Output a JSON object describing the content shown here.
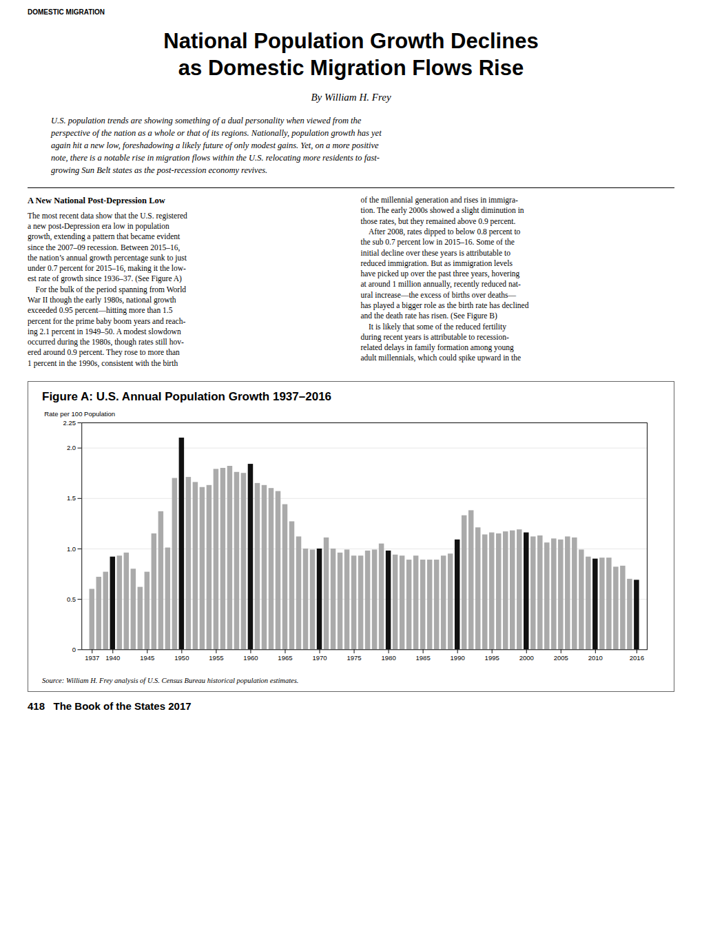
{
  "chart_data": {
    "type": "bar",
    "title": "Figure A: U.S. Annual Population Growth 1937–2016",
    "ylabel": "Rate per 100 Population",
    "caption": "Source: William H. Frey analysis of U.S. Census Bureau historical population estimates.",
    "annotations": [
      "DOMESTIC MIGRATION",
      "National Population Growth Declines",
      "as Domestic Migration Flows Rise",
      "By William H. Frey",
      "U.S. population trends are showing something of a dual personality when viewed from the\nperspective of the nation as a whole or that of its regions. Nationally, population growth has yet\nagain hit a new low, foreshadowing a likely future of only modest gains. Yet, on a more positive\nnote, there is a notable rise in migration flows within the U.S. relocating more residents to fast-\ngrowing Sun Belt states as the post-recession economy revives.",
      "A New National Post-Depression Low",
      "The most recent data show that the U.S. registered\na new post-Depression era low in population\ngrowth, extending a pattern that became evident\nsince the 2007–09 recession. Between 2015–16,\nthe nation’s annual growth percentage sunk to just\nunder 0.7 percent for 2015–16, making it the low-\nest rate of growth since 1936–37. (See Figure A)\n    For the bulk of the period spanning from World\nWar II though the early 1980s, national growth\nexceeded 0.95 percent—hitting more than 1.5\npercent for the prime baby boom years and reach-\ning 2.1 percent in 1949–50. A modest slowdown\noccurred during the 1980s, though rates still hov-\nered around 0.9 percent. They rose to more than\n1 percent in the 1990s, consistent with the birth",
      "of the millennial generation and rises in immigra-\ntion. The early 2000s showed a slight diminution in\nthose rates, but they remained above 0.9 percent.\n    After 2008, rates dipped to below 0.8 percent to\nthe sub 0.7 percent low in 2015–16. Some of the\ninitial decline over these years is attributable to\nreduced immigration. But as immigration levels\nhave picked up over the past three years, hovering\nat around 1 million annually, recently reduced nat-\nural increase—the excess of births over deaths—\nhas played a bigger role as the birth rate has declined\nand the death rate has risen. (See Figure B)\n    It is likely that some of the reduced fertility\nduring recent years is attributable to recession-\nrelated delays in family formation among young\nadult millennials, which could spike upward in the",
      "418   The Book of the States 2017"
    ],
    "x": [
      1937,
      1938,
      1939,
      1940,
      1941,
      1942,
      1943,
      1944,
      1945,
      1946,
      1947,
      1948,
      1949,
      1950,
      1951,
      1952,
      1953,
      1954,
      1955,
      1956,
      1957,
      1958,
      1959,
      1960,
      1961,
      1962,
      1963,
      1964,
      1965,
      1966,
      1967,
      1968,
      1969,
      1970,
      1971,
      1972,
      1973,
      1974,
      1975,
      1976,
      1977,
      1978,
      1979,
      1980,
      1981,
      1982,
      1983,
      1984,
      1985,
      1986,
      1987,
      1988,
      1989,
      1990,
      1991,
      1992,
      1993,
      1994,
      1995,
      1996,
      1997,
      1998,
      1999,
      2000,
      2001,
      2002,
      2003,
      2004,
      2005,
      2006,
      2007,
      2008,
      2009,
      2010,
      2011,
      2012,
      2013,
      2014,
      2015,
      2016
    ],
    "values": [
      0.6,
      0.72,
      0.77,
      0.92,
      0.93,
      0.96,
      0.8,
      0.62,
      0.77,
      1.15,
      1.37,
      1.01,
      1.7,
      2.1,
      1.71,
      1.66,
      1.61,
      1.63,
      1.79,
      1.8,
      1.82,
      1.76,
      1.75,
      1.84,
      1.65,
      1.63,
      1.6,
      1.57,
      1.44,
      1.27,
      1.12,
      1.0,
      0.99,
      1.0,
      1.11,
      1.0,
      0.96,
      0.99,
      0.93,
      0.93,
      0.98,
      0.99,
      1.05,
      0.98,
      0.94,
      0.93,
      0.89,
      0.93,
      0.89,
      0.89,
      0.89,
      0.93,
      0.95,
      1.09,
      1.33,
      1.38,
      1.21,
      1.14,
      1.16,
      1.15,
      1.17,
      1.18,
      1.19,
      1.16,
      1.12,
      1.13,
      1.06,
      1.1,
      1.09,
      1.12,
      1.11,
      0.99,
      0.92,
      0.9,
      0.91,
      0.91,
      0.82,
      0.83,
      0.7,
      0.69
    ],
    "colors": [
      "#aaaaaa",
      "#aaaaaa",
      "#aaaaaa",
      "#111111",
      "#aaaaaa",
      "#aaaaaa",
      "#aaaaaa",
      "#aaaaaa",
      "#aaaaaa",
      "#aaaaaa",
      "#aaaaaa",
      "#aaaaaa",
      "#aaaaaa",
      "#111111",
      "#aaaaaa",
      "#aaaaaa",
      "#aaaaaa",
      "#aaaaaa",
      "#aaaaaa",
      "#aaaaaa",
      "#aaaaaa",
      "#aaaaaa",
      "#aaaaaa",
      "#111111",
      "#aaaaaa",
      "#aaaaaa",
      "#aaaaaa",
      "#aaaaaa",
      "#aaaaaa",
      "#aaaaaa",
      "#aaaaaa",
      "#aaaaaa",
      "#aaaaaa",
      "#111111",
      "#aaaaaa",
      "#aaaaaa",
      "#aaaaaa",
      "#aaaaaa",
      "#aaaaaa",
      "#aaaaaa",
      "#aaaaaa",
      "#aaaaaa",
      "#aaaaaa",
      "#111111",
      "#aaaaaa",
      "#aaaaaa",
      "#aaaaaa",
      "#aaaaaa",
      "#aaaaaa",
      "#aaaaaa",
      "#aaaaaa",
      "#aaaaaa",
      "#aaaaaa",
      "#111111",
      "#aaaaaa",
      "#aaaaaa",
      "#aaaaaa",
      "#aaaaaa",
      "#aaaaaa",
      "#aaaaaa",
      "#aaaaaa",
      "#aaaaaa",
      "#aaaaaa",
      "#111111",
      "#aaaaaa",
      "#aaaaaa",
      "#aaaaaa",
      "#aaaaaa",
      "#aaaaaa",
      "#aaaaaa",
      "#aaaaaa",
      "#aaaaaa",
      "#aaaaaa",
      "#111111",
      "#aaaaaa",
      "#aaaaaa",
      "#aaaaaa",
      "#aaaaaa",
      "#aaaaaa",
      "#111111"
    ],
    "xlim": [
      1935.5,
      2017.5
    ],
    "xticks": [
      1937,
      1940,
      1945,
      1950,
      1955,
      1960,
      1965,
      1970,
      1975,
      1980,
      1985,
      1990,
      1995,
      2000,
      2005,
      2010,
      2016
    ],
    "ylim": [
      0,
      2.25
    ],
    "yticks": [
      0,
      0.5,
      {
        "value": 1,
        "label": "1.0"
      },
      1.5,
      {
        "value": 2,
        "label": "2.0"
      },
      2.25
    ],
    "grid": true
  }
}
